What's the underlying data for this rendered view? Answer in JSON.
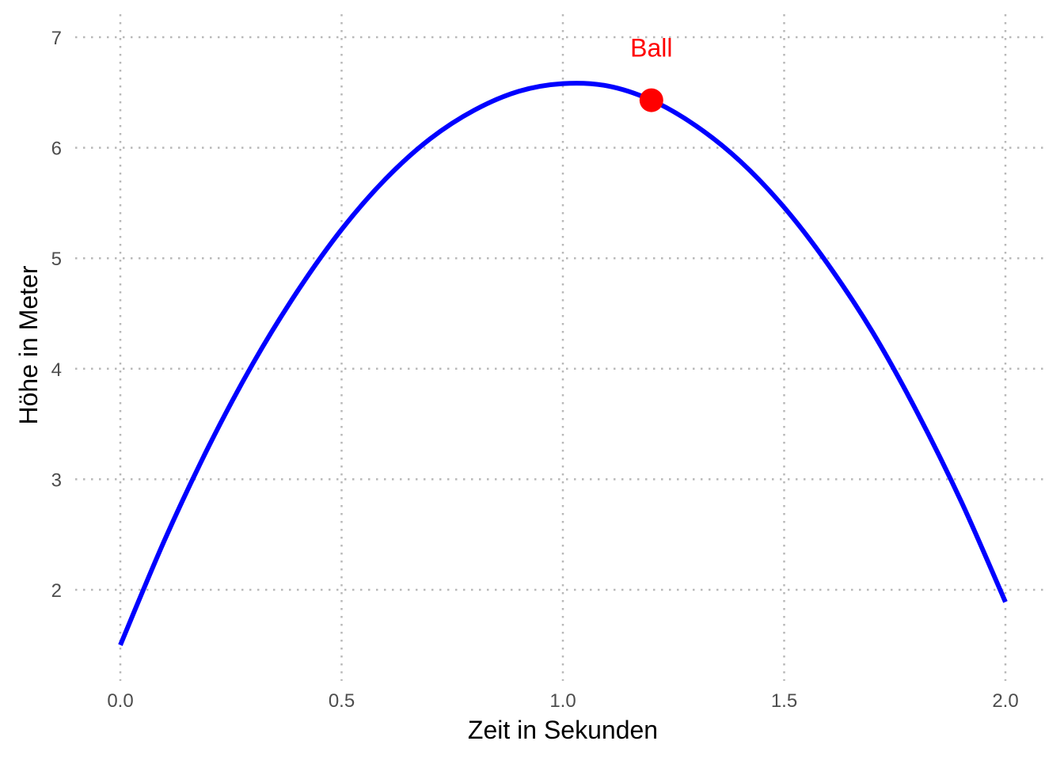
{
  "chart_data": {
    "type": "line",
    "title": "",
    "xlabel": "Zeit in Sekunden",
    "ylabel": "Höhe in Meter",
    "xlim": [
      0,
      2
    ],
    "ylim": [
      1.3,
      7.1
    ],
    "xticks": [
      0,
      0.5,
      1,
      1.5,
      2
    ],
    "xtick_labels": [
      "0.0",
      "0.5",
      "1.0",
      "1.5",
      "2.0"
    ],
    "yticks": [
      2,
      3,
      4,
      5,
      6,
      7
    ],
    "ytick_labels": [
      "2",
      "3",
      "4",
      "5",
      "6",
      "7"
    ],
    "grid": true,
    "legend": "none",
    "series": [
      {
        "color": "#0000ff",
        "x": [
          0,
          0.1,
          0.2,
          0.3,
          0.4,
          0.5,
          0.6,
          0.7,
          0.8,
          0.9,
          1.0,
          1.1,
          1.2,
          1.3,
          1.4,
          1.5,
          1.6,
          1.7,
          1.8,
          1.9,
          2.0
        ],
        "y": [
          1.5,
          2.45,
          3.3,
          4.05,
          4.7,
          5.26,
          5.72,
          6.08,
          6.34,
          6.51,
          6.58,
          6.56,
          6.43,
          6.2,
          5.88,
          5.46,
          4.94,
          4.33,
          3.61,
          2.8,
          1.89
        ]
      }
    ],
    "marker": {
      "x": 1.2,
      "y": 6.43,
      "label": "Ball",
      "color": "#ff0000"
    }
  }
}
